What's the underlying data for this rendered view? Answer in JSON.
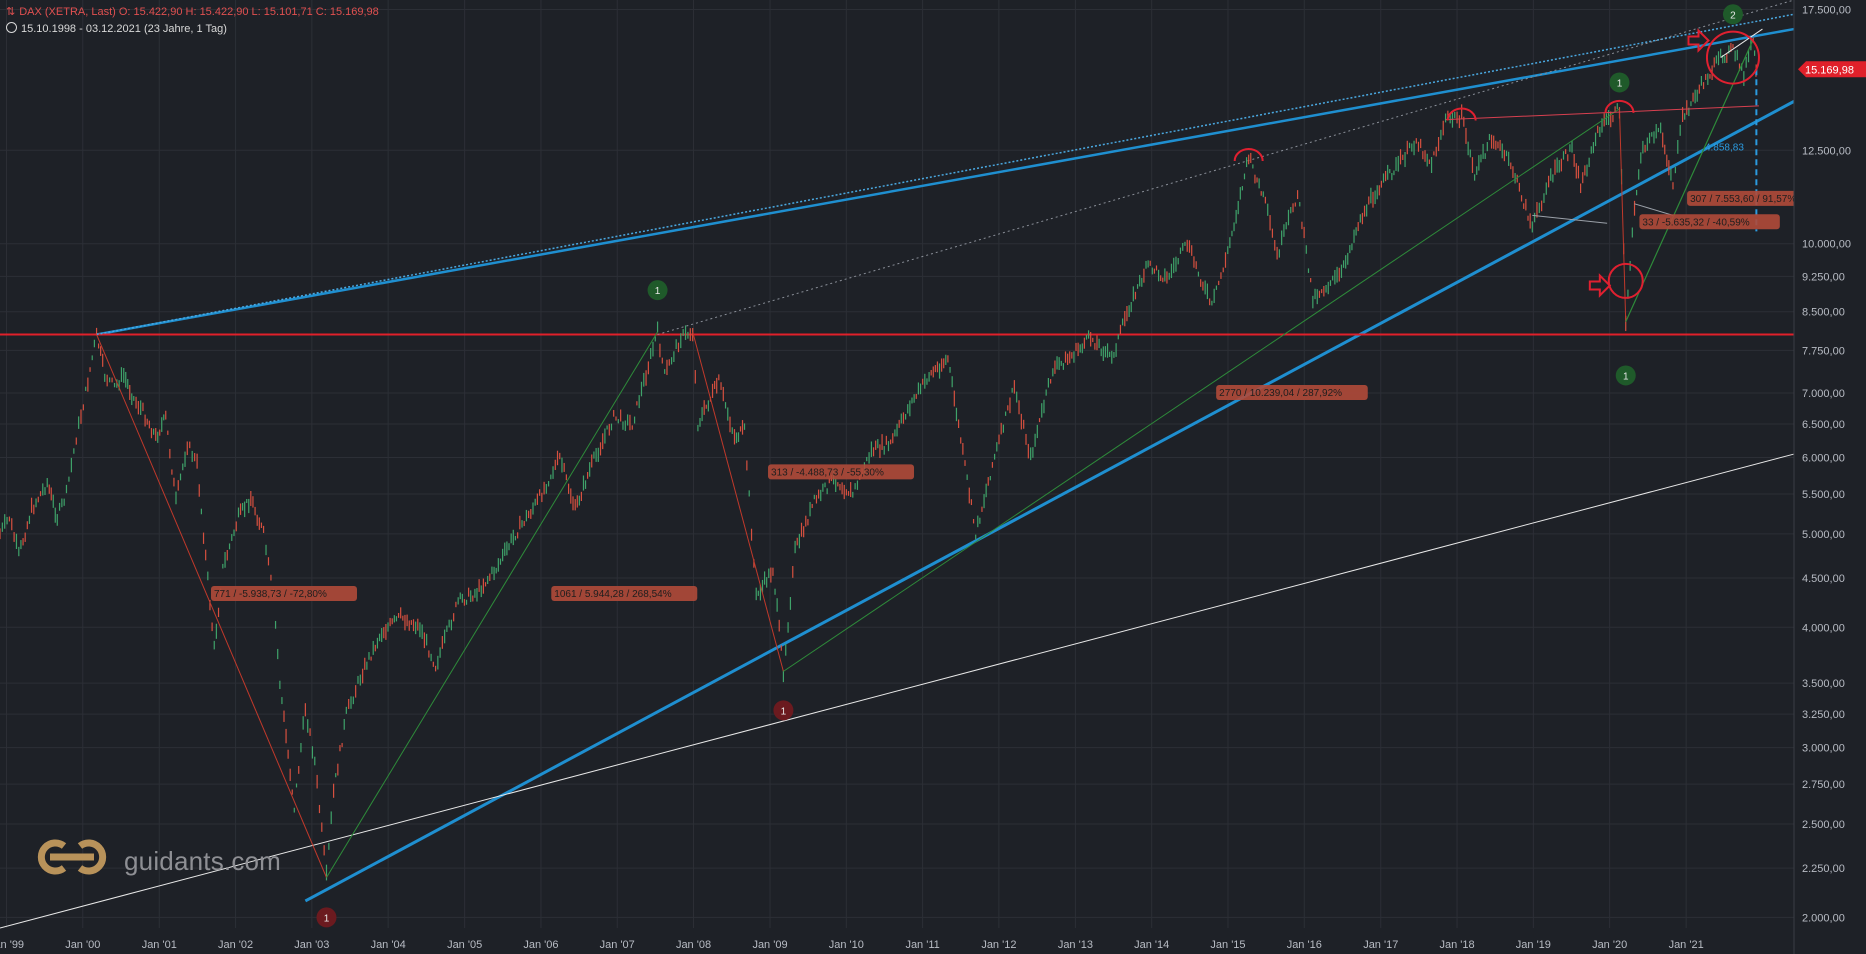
{
  "header": {
    "symbol_line": "DAX (XETRA, Last)   O: 15.422,90   H: 15.422,90   L: 15.101,71   C: 15.169,98",
    "period_line": "15.10.1998 - 03.12.2021   (23 Jahre, 1 Tag)"
  },
  "logo": {
    "text": "guidants.com",
    "icon": "guidants-logo-icon"
  },
  "colors": {
    "background": "#1e2127",
    "candle_up": "#3fa36a",
    "candle_down": "#d7503f",
    "support_line": "#1f8fd0",
    "resistance_line": "#e0202a",
    "price_badge": "#e0202a",
    "measure_label": "#b04a3a"
  },
  "chart_data": {
    "type": "line",
    "title": "DAX (XETRA, Last)",
    "y_scale": "log",
    "ylim": [
      1950,
      17900
    ],
    "xlim": [
      "1998-12-01",
      "2022-06-01"
    ],
    "grid": true,
    "last_price_label": "15.169,98",
    "x_tick_labels": [
      "Jan '99",
      "Jan '00",
      "Jan '01",
      "Jan '02",
      "Jan '03",
      "Jan '04",
      "Jan '05",
      "Jan '06",
      "Jan '07",
      "Jan '08",
      "Jan '09",
      "Jan '10",
      "Jan '11",
      "Jan '12",
      "Jan '13",
      "Jan '14",
      "Jan '15",
      "Jan '16",
      "Jan '17",
      "Jan '18",
      "Jan '19",
      "Jan '20",
      "Jan '21"
    ],
    "x_tick_dates": [
      "1999-01-01",
      "2000-01-01",
      "2001-01-01",
      "2002-01-01",
      "2003-01-01",
      "2004-01-01",
      "2005-01-01",
      "2006-01-01",
      "2007-01-01",
      "2008-01-01",
      "2009-01-01",
      "2010-01-01",
      "2011-01-01",
      "2012-01-01",
      "2013-01-01",
      "2014-01-01",
      "2015-01-01",
      "2016-01-01",
      "2017-01-01",
      "2018-01-01",
      "2019-01-01",
      "2020-01-01",
      "2021-01-01"
    ],
    "y_ticks": [
      {
        "value": 17500,
        "label": "17.500,00"
      },
      {
        "value": 12500,
        "label": "12.500,00"
      },
      {
        "value": 10000,
        "label": "10.000,00"
      },
      {
        "value": 9250,
        "label": "9.250,00"
      },
      {
        "value": 8500,
        "label": "8.500,00"
      },
      {
        "value": 7750,
        "label": "7.750,00"
      },
      {
        "value": 7000,
        "label": "7.000,00"
      },
      {
        "value": 6500,
        "label": "6.500,00"
      },
      {
        "value": 6000,
        "label": "6.000,00"
      },
      {
        "value": 5500,
        "label": "5.500,00"
      },
      {
        "value": 5000,
        "label": "5.000,00"
      },
      {
        "value": 4500,
        "label": "4.500,00"
      },
      {
        "value": 4000,
        "label": "4.000,00"
      },
      {
        "value": 3500,
        "label": "3.500,00"
      },
      {
        "value": 3250,
        "label": "3.250,00"
      },
      {
        "value": 3000,
        "label": "3.000,00"
      },
      {
        "value": 2750,
        "label": "2.750,00"
      },
      {
        "value": 2500,
        "label": "2.500,00"
      },
      {
        "value": 2250,
        "label": "2.250,00"
      },
      {
        "value": 2000,
        "label": "2.000,00"
      }
    ],
    "series": [
      {
        "values": [
          [
            "1998-12-01",
            5000
          ],
          [
            "1999-01-15",
            5200
          ],
          [
            "1999-03-01",
            4750
          ],
          [
            "1999-05-01",
            5300
          ],
          [
            "1999-07-15",
            5650
          ],
          [
            "1999-09-01",
            5200
          ],
          [
            "1999-10-15",
            5500
          ],
          [
            "1999-12-01",
            6300
          ],
          [
            "2000-01-15",
            7000
          ],
          [
            "2000-03-07",
            8050
          ],
          [
            "2000-04-15",
            7300
          ],
          [
            "2000-06-01",
            7100
          ],
          [
            "2000-07-15",
            7300
          ],
          [
            "2000-09-01",
            6900
          ],
          [
            "2000-10-15",
            6700
          ],
          [
            "2000-12-15",
            6300
          ],
          [
            "2001-02-01",
            6600
          ],
          [
            "2001-03-22",
            5400
          ],
          [
            "2001-05-15",
            6200
          ],
          [
            "2001-07-01",
            5900
          ],
          [
            "2001-09-21",
            3800
          ],
          [
            "2001-11-01",
            4600
          ],
          [
            "2002-01-15",
            5200
          ],
          [
            "2002-03-15",
            5450
          ],
          [
            "2002-05-15",
            5000
          ],
          [
            "2002-07-01",
            4300
          ],
          [
            "2002-08-01",
            3500
          ],
          [
            "2002-10-09",
            2600
          ],
          [
            "2002-12-01",
            3300
          ],
          [
            "2003-01-15",
            2900
          ],
          [
            "2003-03-12",
            2200
          ],
          [
            "2003-04-15",
            2700
          ],
          [
            "2003-06-15",
            3250
          ],
          [
            "2003-09-01",
            3600
          ],
          [
            "2003-12-01",
            3950
          ],
          [
            "2004-03-01",
            4100
          ],
          [
            "2004-06-01",
            4000
          ],
          [
            "2004-08-15",
            3650
          ],
          [
            "2004-12-01",
            4250
          ],
          [
            "2005-03-01",
            4350
          ],
          [
            "2005-06-01",
            4600
          ],
          [
            "2005-09-01",
            5000
          ],
          [
            "2005-12-15",
            5400
          ],
          [
            "2006-04-01",
            6000
          ],
          [
            "2006-06-14",
            5300
          ],
          [
            "2006-09-01",
            5900
          ],
          [
            "2006-12-15",
            6600
          ],
          [
            "2007-03-14",
            6500
          ],
          [
            "2007-07-13",
            8100
          ],
          [
            "2007-08-16",
            7300
          ],
          [
            "2007-11-01",
            8000
          ],
          [
            "2007-12-28",
            8100
          ],
          [
            "2008-01-22",
            6500
          ],
          [
            "2008-05-01",
            7200
          ],
          [
            "2008-07-15",
            6300
          ],
          [
            "2008-09-01",
            6400
          ],
          [
            "2008-10-27",
            4300
          ],
          [
            "2009-01-15",
            4600
          ],
          [
            "2009-03-06",
            3600
          ],
          [
            "2009-05-01",
            4800
          ],
          [
            "2009-08-01",
            5400
          ],
          [
            "2009-11-01",
            5700
          ],
          [
            "2010-02-01",
            5500
          ],
          [
            "2010-05-01",
            6100
          ],
          [
            "2010-08-01",
            6200
          ],
          [
            "2010-11-01",
            6800
          ],
          [
            "2011-02-01",
            7300
          ],
          [
            "2011-05-02",
            7600
          ],
          [
            "2011-09-12",
            5000
          ],
          [
            "2011-12-01",
            5900
          ],
          [
            "2012-03-15",
            7100
          ],
          [
            "2012-06-01",
            6000
          ],
          [
            "2012-09-15",
            7400
          ],
          [
            "2012-12-15",
            7650
          ],
          [
            "2013-03-15",
            8000
          ],
          [
            "2013-06-24",
            7600
          ],
          [
            "2013-09-15",
            8600
          ],
          [
            "2013-12-15",
            9500
          ],
          [
            "2014-03-15",
            9200
          ],
          [
            "2014-06-20",
            10000
          ],
          [
            "2014-10-16",
            8600
          ],
          [
            "2014-12-31",
            9800
          ],
          [
            "2015-04-10",
            12300
          ],
          [
            "2015-06-29",
            11000
          ],
          [
            "2015-08-24",
            9700
          ],
          [
            "2015-11-30",
            11300
          ],
          [
            "2016-02-11",
            8800
          ],
          [
            "2016-06-27",
            9300
          ],
          [
            "2016-09-15",
            10500
          ],
          [
            "2016-12-15",
            11400
          ],
          [
            "2017-03-15",
            12000
          ],
          [
            "2017-06-20",
            12800
          ],
          [
            "2017-09-01",
            12100
          ],
          [
            "2017-11-07",
            13450
          ],
          [
            "2018-01-23",
            13550
          ],
          [
            "2018-03-26",
            11800
          ],
          [
            "2018-06-15",
            12900
          ],
          [
            "2018-09-15",
            12100
          ],
          [
            "2018-12-27",
            10400
          ],
          [
            "2019-03-15",
            11600
          ],
          [
            "2019-07-05",
            12600
          ],
          [
            "2019-08-15",
            11500
          ],
          [
            "2019-11-15",
            13200
          ],
          [
            "2020-02-17",
            13800
          ],
          [
            "2020-03-18",
            8300
          ],
          [
            "2020-04-29",
            11000
          ],
          [
            "2020-06-08",
            12600
          ],
          [
            "2020-09-01",
            13100
          ],
          [
            "2020-10-30",
            11550
          ],
          [
            "2020-12-15",
            13500
          ],
          [
            "2021-03-15",
            14600
          ],
          [
            "2021-06-15",
            15600
          ],
          [
            "2021-08-13",
            15900
          ],
          [
            "2021-10-04",
            15000
          ],
          [
            "2021-11-18",
            16290
          ],
          [
            "2021-12-01",
            15100
          ],
          [
            "2021-12-03",
            15170
          ]
        ]
      }
    ],
    "markers": [
      {
        "date": "2003-03-12",
        "value": 2000,
        "label": "1",
        "kind": "low"
      },
      {
        "date": "2007-07-13",
        "value": 8950,
        "label": "1",
        "kind": "high"
      },
      {
        "date": "2009-03-06",
        "value": 3280,
        "label": "1",
        "kind": "low"
      },
      {
        "date": "2020-02-17",
        "value": 14700,
        "label": "1",
        "kind": "high"
      },
      {
        "date": "2020-03-18",
        "value": 7300,
        "label": "1",
        "kind": "high"
      },
      {
        "date": "2021-08-13",
        "value": 17300,
        "label": "2",
        "kind": "high"
      }
    ],
    "annotations": [
      {
        "date": "2001-09-15",
        "value": 4300,
        "text": "771 / -5.938,73 / -72,80%"
      },
      {
        "date": "2006-03-01",
        "value": 4300,
        "text": "1061 / 5.944,28 / 268,54%"
      },
      {
        "date": "2009-01-01",
        "value": 5750,
        "text": "313 / -4.488,73 / -55,30%"
      },
      {
        "date": "2014-11-15",
        "value": 6950,
        "text": "2770 / 10.239,04 / 287,92%"
      },
      {
        "date": "2021-01-15",
        "value": 11050,
        "text": "307 / 7.553,60 / 91,57%"
      },
      {
        "date": "2020-06-01",
        "value": 10450,
        "text": "33 / -5.635,32 / -40,59%"
      },
      {
        "date": "2021-04-01",
        "value": 12500,
        "text": "4.858,83"
      }
    ],
    "trend_lines": [
      {
        "kind": "upper-channel",
        "from": [
          "2000-03-07",
          8050
        ],
        "to": [
          "2022-06-01",
          16700
        ]
      },
      {
        "kind": "lower-channel",
        "from": [
          "2002-12-01",
          2080
        ],
        "to": [
          "2022-06-01",
          14050
        ]
      },
      {
        "kind": "resistance",
        "from": [
          "1998-12-01",
          8050
        ],
        "to": [
          "2022-06-01",
          8050
        ]
      },
      {
        "kind": "long-term",
        "from": [
          "1998-12-01",
          1950
        ],
        "to": [
          "2022-06-01",
          6050
        ]
      }
    ]
  }
}
